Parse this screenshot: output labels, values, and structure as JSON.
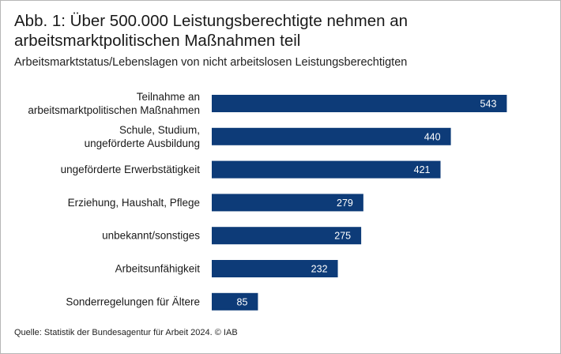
{
  "title": "Abb. 1: Über 500.000 Leistungsberechtigte nehmen an arbeitsmarktpolitischen Maßnahmen teil",
  "subtitle": "Arbeitsmarktstatus/Lebenslagen von nicht arbeitslosen Leistungsberechtigten",
  "source": "Quelle: Statistik der Bundesagentur für Arbeit 2024.   © IAB",
  "colors": {
    "bar": "#0d3b78",
    "frame": "#b7b7b7"
  },
  "chart_data": {
    "type": "bar",
    "orientation": "horizontal",
    "categories": [
      [
        "Teilnahme an",
        "arbeitsmarktpolitischen Maßnahmen"
      ],
      [
        "Schule, Studium,",
        "ungeförderte Ausbildung"
      ],
      [
        "ungeförderte Erwerbstätigkeit"
      ],
      [
        "Erziehung, Haushalt, Pflege"
      ],
      [
        "unbekannt/sonstiges"
      ],
      [
        "Arbeitsunfähigkeit"
      ],
      [
        "Sonderregelungen für Ältere"
      ]
    ],
    "values": [
      543,
      440,
      421,
      279,
      275,
      232,
      85
    ],
    "data_labels": [
      "543",
      "440",
      "421",
      "279",
      "275",
      "232",
      "85"
    ],
    "grid": false,
    "legend": "none"
  }
}
